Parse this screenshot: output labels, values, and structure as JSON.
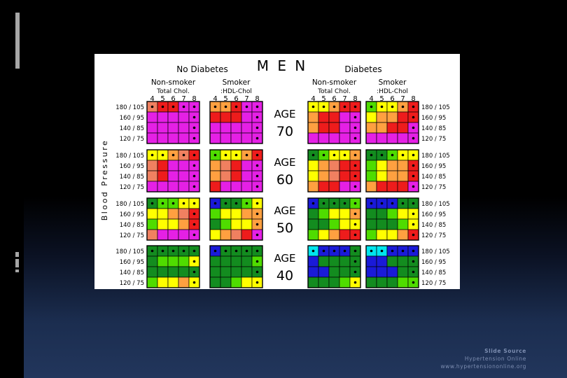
{
  "source": {
    "title": "Slide Source",
    "line1": "Hypertension Online",
    "line2": "www.hypertensiononline.org"
  },
  "chart": {
    "title": "M E N",
    "groups": [
      "No Diabetes",
      "Diabetes"
    ],
    "subgroups": [
      "Non-smoker",
      "Smoker"
    ],
    "chol_label": "Total Chol.",
    "hdl_label": ":HDL-Chol",
    "ratio_ticks": [
      "4",
      "5",
      "6",
      "7",
      "8"
    ],
    "bp_axis_label": "Blood Pressure",
    "bp_rows": [
      "180 / 105",
      "160 / 95",
      "140 / 85",
      "120 / 75"
    ],
    "age_prefix": "AGE",
    "ages": [
      "70",
      "60",
      "50",
      "40"
    ],
    "colors": {
      "C": "#00e5ee",
      "B": "#1a1ad8",
      "G": "#138c1f",
      "L": "#4fdc00",
      "Y": "#ffff00",
      "O": "#ffa040",
      "S": "#f08060",
      "R": "#ee1c1c",
      "M": "#e520e5"
    },
    "grids": [
      [
        [
          "SRRMM",
          "MMMMM",
          "MMMMM",
          "MMMMM"
        ],
        [
          "OORMM",
          "RRRMM",
          "MMMMM",
          "MMMMM"
        ],
        [
          "YYORR",
          "ORRMM",
          "ORRMM",
          "MMMMM"
        ],
        [
          "LYYOR",
          "YOORR",
          "OORRM",
          "MMMMM"
        ]
      ],
      [
        [
          "YYOSR",
          "SRMMM",
          "SRMMM",
          "MMMMM"
        ],
        [
          "LYYOR",
          "OSRMM",
          "OSRMM",
          "RMMMM"
        ],
        [
          "GLYYO",
          "YOSRR",
          "YOSRR",
          "ORRMM"
        ],
        [
          "GGLYY",
          "LYOOR",
          "LYOOR",
          "ORRRM"
        ]
      ],
      [
        [
          "GLLYY",
          "YYOSR",
          "LYYOR",
          "SMMMM"
        ],
        [
          "BGGLY",
          "LYYOO",
          "GLYYO",
          "YOSRM"
        ],
        [
          "BGGGL",
          "GLYYO",
          "GGLYY",
          "LYORR"
        ],
        [
          "BBBGG",
          "GGLYY",
          "GGGLY",
          "LYYOR"
        ]
      ],
      [
        [
          "GGGGG",
          "GLLLY",
          "GGGGG",
          "LYYOY"
        ],
        [
          "BGGGG",
          "GGGGL",
          "GGGGG",
          "GGLYY"
        ],
        [
          "CBBBG",
          "BGGGG",
          "BBGGG",
          "GGGLY"
        ],
        [
          "CCBBB",
          "BBGGG",
          "BBBGG",
          "GGGLL"
        ]
      ]
    ]
  }
}
